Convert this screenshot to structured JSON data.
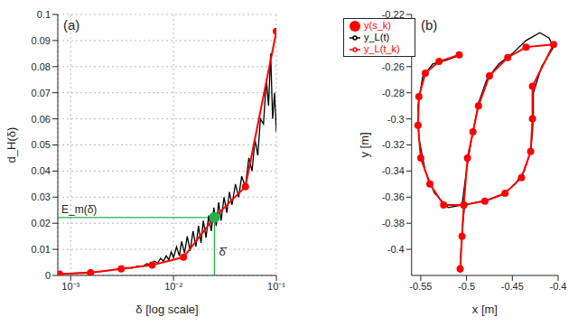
{
  "chart_data": [
    {
      "type": "line",
      "panel_label": "(a)",
      "x_label": "δ [log scale]",
      "y_label": "d_H(δ)",
      "log": "x",
      "grid": true,
      "xlim": [
        0.00075,
        0.1
      ],
      "xticks": [
        {
          "value": 0.001,
          "label": "10⁻³"
        },
        {
          "value": 0.01,
          "label": "10⁻²"
        },
        {
          "value": 0.1,
          "label": "10⁻¹"
        }
      ],
      "ylim": [
        0,
        0.1
      ],
      "yticks": [
        0,
        0.01,
        0.02,
        0.03,
        0.04,
        0.05,
        0.06,
        0.07,
        0.08,
        0.09,
        0.1
      ],
      "series": [
        {
          "color": "#000000",
          "marker": "none",
          "line_style": "solid",
          "x": [
            0.00078,
            0.001,
            0.0013,
            0.0016,
            0.002,
            0.0025,
            0.003,
            0.0035,
            0.004,
            0.0045,
            0.005,
            0.0055,
            0.006,
            0.0065,
            0.007,
            0.0075,
            0.008,
            0.0085,
            0.009,
            0.0095,
            0.01,
            0.0107,
            0.0114,
            0.012,
            0.0128,
            0.0136,
            0.0145,
            0.0155,
            0.0165,
            0.0175,
            0.0185,
            0.0195,
            0.0207,
            0.022,
            0.0233,
            0.0247,
            0.026,
            0.0275,
            0.029,
            0.031,
            0.033,
            0.035,
            0.037,
            0.04,
            0.043,
            0.046,
            0.05,
            0.054,
            0.058,
            0.062,
            0.066,
            0.07,
            0.075,
            0.08,
            0.084,
            0.088,
            0.092,
            0.096,
            0.1
          ],
          "values": [
            0.0005,
            0.0008,
            0.001,
            0.0012,
            0.0016,
            0.002,
            0.0026,
            0.003,
            0.0028,
            0.0036,
            0.0034,
            0.0045,
            0.004,
            0.0055,
            0.0048,
            0.0065,
            0.0055,
            0.0075,
            0.006,
            0.009,
            0.0068,
            0.011,
            0.0075,
            0.013,
            0.0085,
            0.015,
            0.0095,
            0.017,
            0.011,
            0.019,
            0.0125,
            0.021,
            0.0145,
            0.023,
            0.017,
            0.026,
            0.019,
            0.028,
            0.021,
            0.03,
            0.024,
            0.032,
            0.027,
            0.035,
            0.03,
            0.038,
            0.034,
            0.045,
            0.04,
            0.052,
            0.046,
            0.06,
            0.058,
            0.075,
            0.065,
            0.085,
            0.06,
            0.07,
            0.055
          ]
        },
        {
          "color": "#ff0000",
          "marker": "circle",
          "line_style": "solid",
          "x": [
            0.00078,
            0.00156,
            0.0031,
            0.0062,
            0.0125,
            0.025,
            0.05,
            0.1
          ],
          "values": [
            0.0005,
            0.001,
            0.0025,
            0.004,
            0.007,
            0.0222,
            0.034,
            0.0935
          ]
        }
      ],
      "highlight": {
        "x": 0.025,
        "y": 0.0222,
        "color": "#22b14c",
        "x_label": "δ̄",
        "y_label": "E_m(δ̄)"
      }
    },
    {
      "type": "line",
      "panel_label": "(b)",
      "x_label": "x [m]",
      "y_label": "y [m]",
      "grid": false,
      "legend": "top-left",
      "xlim": [
        -0.56,
        -0.4
      ],
      "xticks": [
        -0.55,
        -0.5,
        -0.45,
        -0.4
      ],
      "ylim": [
        -0.42,
        -0.22
      ],
      "yticks": [
        -0.4,
        -0.38,
        -0.36,
        -0.34,
        -0.32,
        -0.3,
        -0.28,
        -0.26,
        -0.24,
        -0.22
      ],
      "series": [
        {
          "name": "y_L(t)",
          "color": "#000000",
          "marker": "none",
          "line_style": "solid",
          "x": [
            -0.507,
            -0.506,
            -0.504,
            -0.502,
            -0.49,
            -0.475,
            -0.46,
            -0.447,
            -0.437,
            -0.43,
            -0.428,
            -0.427,
            -0.427,
            -0.418,
            -0.405,
            -0.41,
            -0.42,
            -0.435,
            -0.45,
            -0.465,
            -0.478,
            -0.487,
            -0.493,
            -0.498,
            -0.502,
            -0.505,
            -0.52,
            -0.535,
            -0.545,
            -0.552,
            -0.553,
            -0.548,
            -0.537,
            -0.522,
            -0.51
          ],
          "values": [
            -0.418,
            -0.4,
            -0.38,
            -0.366,
            -0.364,
            -0.362,
            -0.358,
            -0.35,
            -0.34,
            -0.325,
            -0.31,
            -0.295,
            -0.28,
            -0.26,
            -0.245,
            -0.238,
            -0.234,
            -0.24,
            -0.25,
            -0.258,
            -0.27,
            -0.288,
            -0.31,
            -0.33,
            -0.35,
            -0.366,
            -0.368,
            -0.357,
            -0.34,
            -0.315,
            -0.29,
            -0.268,
            -0.258,
            -0.255,
            -0.252
          ]
        },
        {
          "name": "y_L(t_k)",
          "color": "#ff0000",
          "marker": "none",
          "line_style": "solid",
          "x": [
            -0.507,
            -0.505,
            -0.503,
            -0.48,
            -0.458,
            -0.44,
            -0.43,
            -0.428,
            -0.428,
            -0.405,
            -0.435,
            -0.455,
            -0.475,
            -0.487,
            -0.493,
            -0.499,
            -0.503,
            -0.525,
            -0.54,
            -0.55,
            -0.553,
            -0.552,
            -0.545,
            -0.53,
            -0.508
          ],
          "values": [
            -0.415,
            -0.39,
            -0.366,
            -0.363,
            -0.357,
            -0.345,
            -0.325,
            -0.3,
            -0.275,
            -0.243,
            -0.245,
            -0.253,
            -0.267,
            -0.29,
            -0.31,
            -0.33,
            -0.366,
            -0.366,
            -0.35,
            -0.33,
            -0.305,
            -0.283,
            -0.265,
            -0.256,
            -0.251
          ]
        },
        {
          "name": "y(s_k)",
          "color": "#ff0000",
          "marker": "circle",
          "line_style": "none",
          "x": [
            -0.507,
            -0.505,
            -0.503,
            -0.48,
            -0.458,
            -0.44,
            -0.43,
            -0.428,
            -0.428,
            -0.405,
            -0.435,
            -0.455,
            -0.475,
            -0.487,
            -0.493,
            -0.499,
            -0.503,
            -0.525,
            -0.54,
            -0.55,
            -0.553,
            -0.552,
            -0.545,
            -0.53,
            -0.508
          ],
          "values": [
            -0.415,
            -0.39,
            -0.366,
            -0.363,
            -0.357,
            -0.345,
            -0.325,
            -0.3,
            -0.275,
            -0.243,
            -0.245,
            -0.253,
            -0.267,
            -0.29,
            -0.31,
            -0.33,
            -0.366,
            -0.366,
            -0.35,
            -0.33,
            -0.305,
            -0.283,
            -0.265,
            -0.256,
            -0.251
          ]
        }
      ]
    }
  ]
}
